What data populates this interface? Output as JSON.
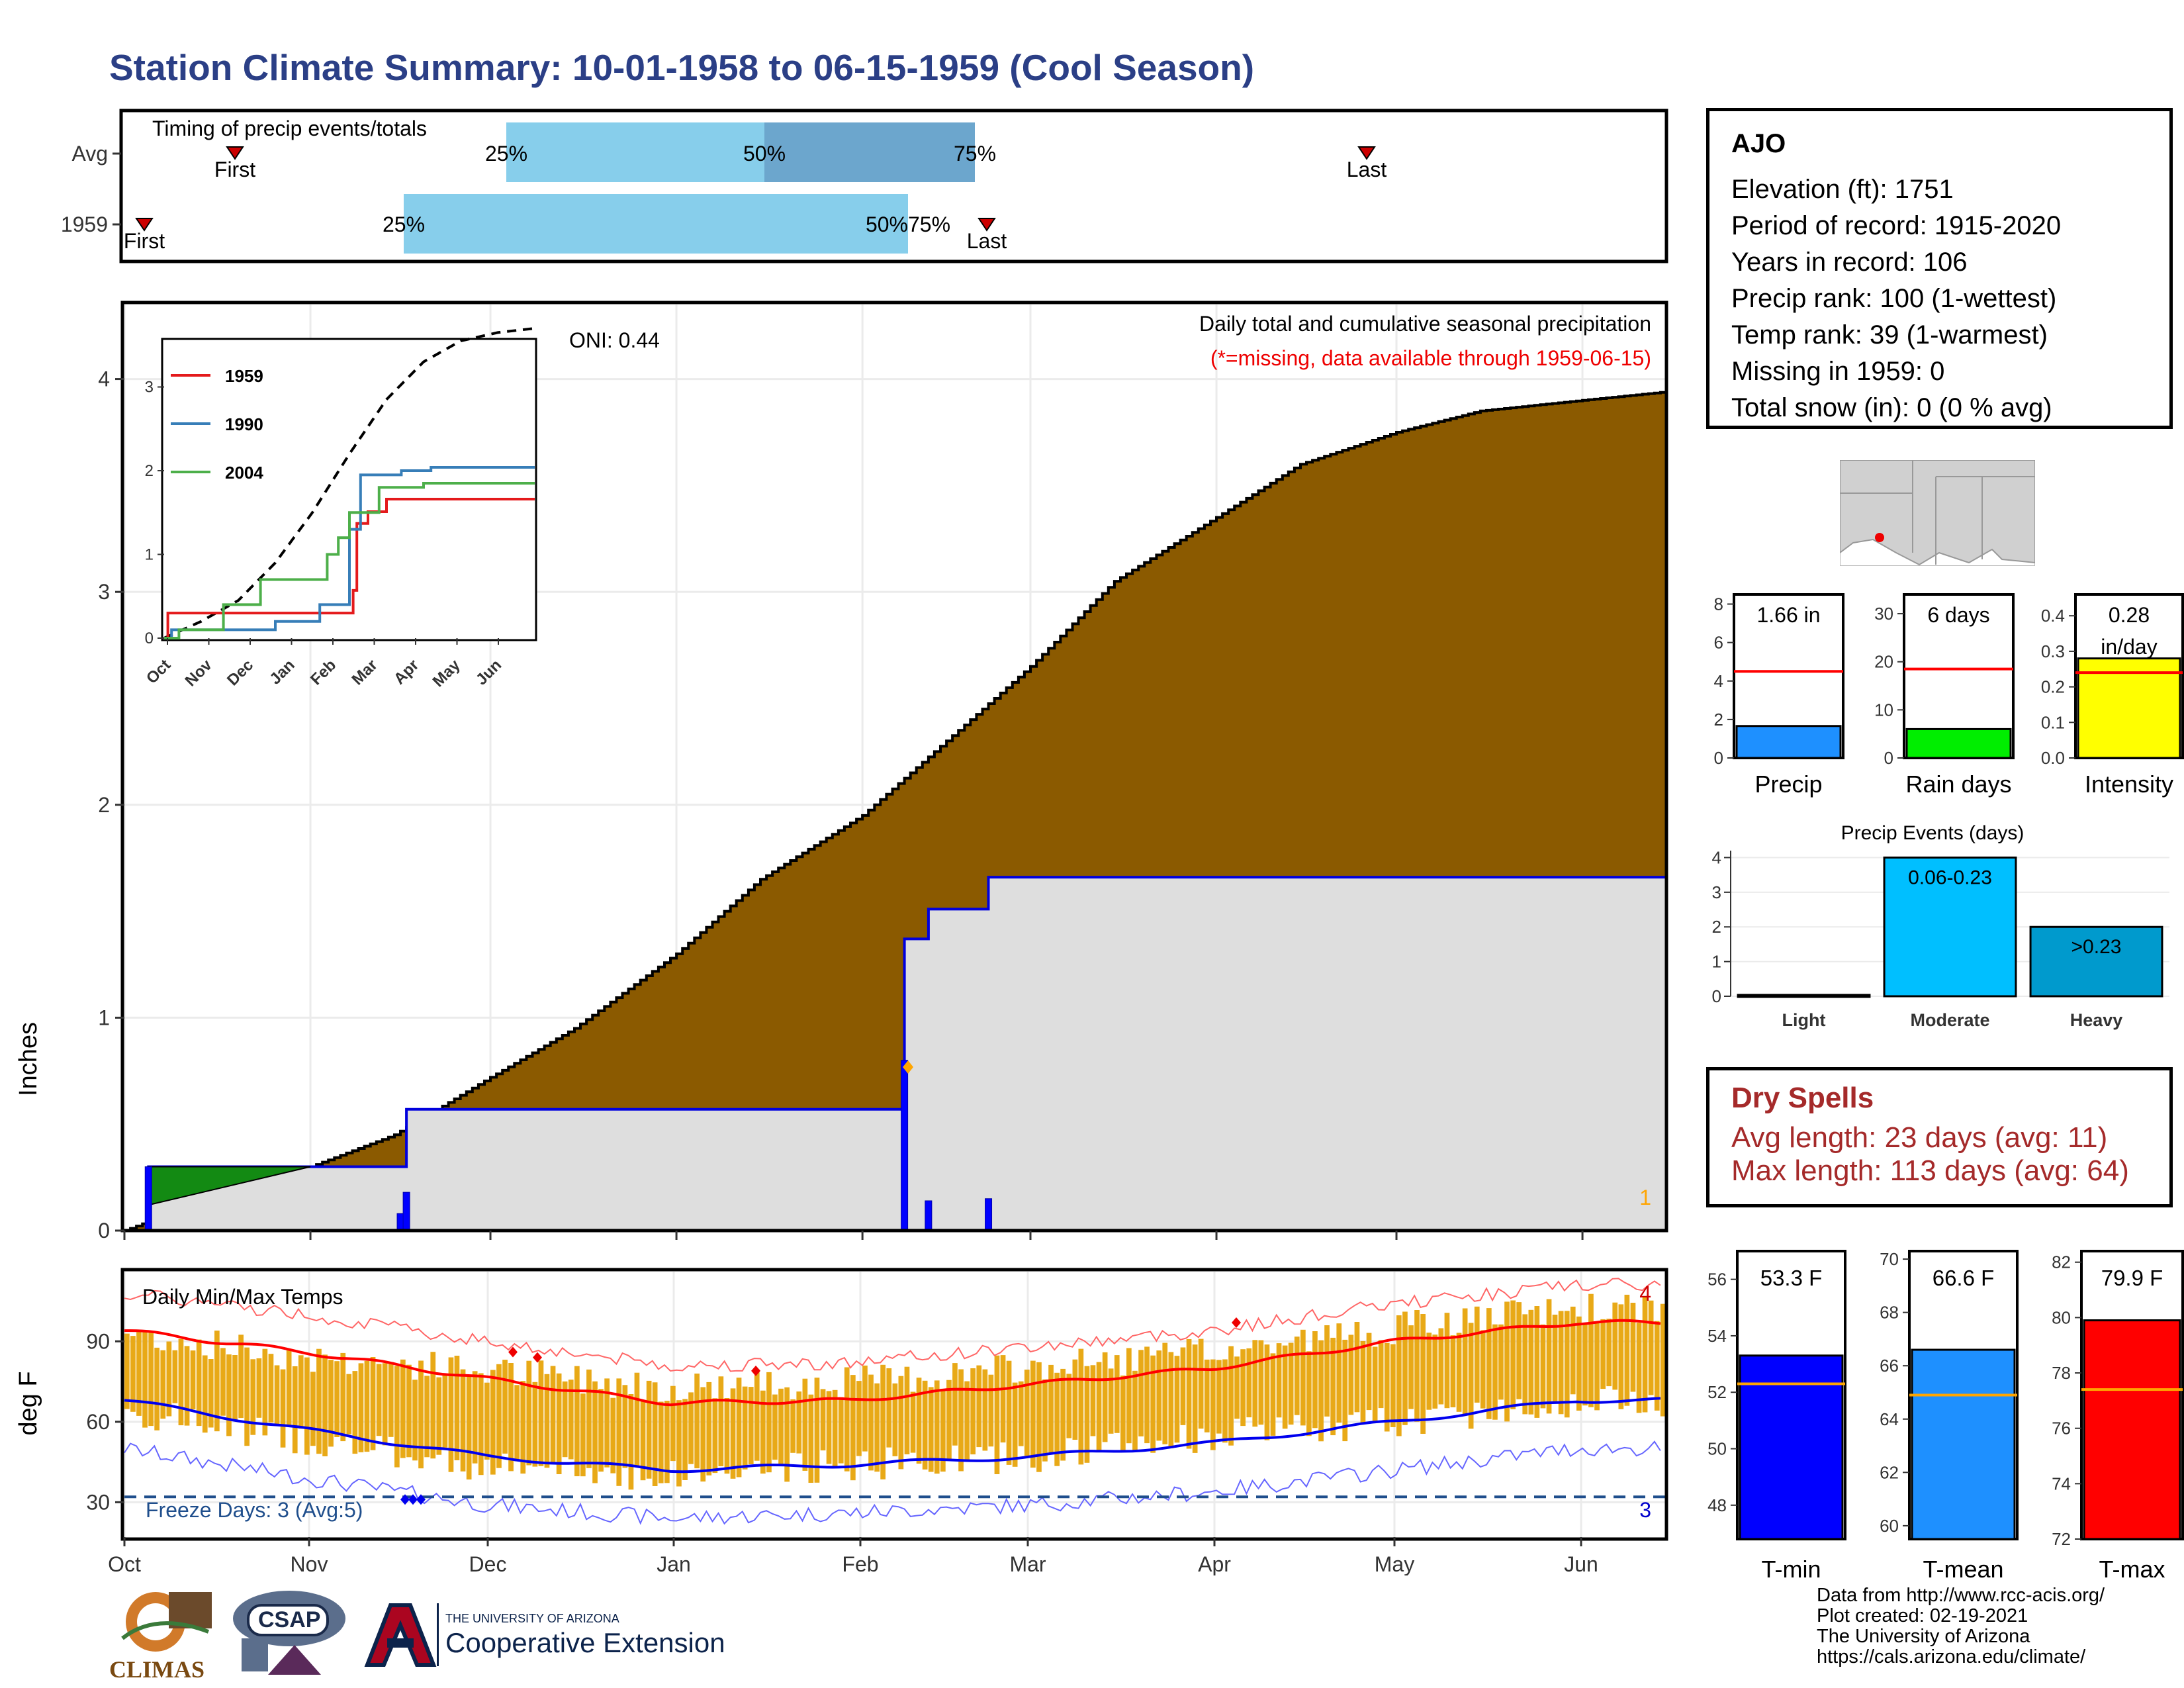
{
  "title": "Station Climate Summary: 10-01-1958 to 06-15-1959 (Cool Season)",
  "timing": {
    "title": "Timing of precip events/totals",
    "rows": [
      "Avg",
      "1959"
    ],
    "first_label": "First",
    "last_label": "Last",
    "q25": "25%",
    "q50": "50%",
    "q75": "75%",
    "q5075": "50%75%"
  },
  "precip": {
    "ylabel": "Inches",
    "yticks": [
      "0",
      "1",
      "2",
      "3",
      "4"
    ],
    "months": [
      "Oct",
      "Nov",
      "Dec",
      "Jan",
      "Feb",
      "Mar",
      "Apr",
      "May",
      "Jun"
    ],
    "oni": "ONI: 0.44",
    "subtitle": "Daily total and cumulative seasonal precipitation",
    "missing_note": "(*=missing, data available through 1959-06-15)",
    "missing_count": "1"
  },
  "inset": {
    "legend": [
      "1959",
      "1990",
      "2004"
    ],
    "colors": [
      "#E41A1C",
      "#377EB8",
      "#4DAF4A"
    ],
    "yticks": [
      "0",
      "1",
      "2",
      "3"
    ],
    "months": [
      "Oct",
      "Nov",
      "Dec",
      "Jan",
      "Feb",
      "Mar",
      "Apr",
      "May",
      "Jun"
    ]
  },
  "temps": {
    "ylabel": "deg F",
    "title": "Daily Min/Max Temps",
    "yticks": [
      "30",
      "60",
      "90"
    ],
    "freeze": "Freeze Days: 3 (Avg:5)",
    "freeze_count": "3",
    "hot_count": "4"
  },
  "station": {
    "name": "AJO",
    "lines": [
      "Elevation (ft): 1751",
      "Period of record: 1915-2020",
      "Years in record: 106",
      "Precip rank: 100 (1-wettest)",
      "Temp rank: 39 (1-warmest)",
      "Missing in 1959: 0",
      "Total snow (in): 0 (0 % avg)"
    ]
  },
  "mini_bars": [
    {
      "label": "Precip",
      "value_text": "1.66 in",
      "value": 1.66,
      "avg": 4.5,
      "ymax": 8.5,
      "ticks": [
        "0",
        "2",
        "4",
        "6",
        "8"
      ],
      "tickvals": [
        0,
        2,
        4,
        6,
        8
      ],
      "color": "#1E90FF"
    },
    {
      "label": "Rain days",
      "value_text": "6 days",
      "value": 6,
      "avg": 18.5,
      "ymax": 34,
      "ticks": [
        "0",
        "10",
        "20",
        "30"
      ],
      "tickvals": [
        0,
        10,
        20,
        30
      ],
      "color": "#00EE00"
    },
    {
      "label": "Intensity",
      "value_text": "0.28",
      "value_text2": "in/day",
      "value": 0.28,
      "avg": 0.24,
      "ymax": 0.46,
      "ticks": [
        "0.0",
        "0.1",
        "0.2",
        "0.3",
        "0.4"
      ],
      "tickvals": [
        0,
        0.1,
        0.2,
        0.3,
        0.4
      ],
      "color": "#FFFF00"
    }
  ],
  "precip_events": {
    "title": "Precip Events (days)",
    "categories": [
      "Light",
      "Moderate",
      "Heavy"
    ],
    "values": [
      0,
      4,
      2
    ],
    "bar_labels": [
      "",
      "0.06-0.23",
      ">0.23"
    ],
    "colors": [
      "#87CEEB",
      "#00BFFF",
      "#009ACD"
    ],
    "yticks": [
      "0",
      "1",
      "2",
      "3",
      "4"
    ]
  },
  "dry_spells": {
    "title": "Dry Spells",
    "avg": "Avg length: 23 days (avg: 11)",
    "max": "Max length: 113 days (avg: 64)"
  },
  "temp_bars": [
    {
      "label": "T-min",
      "value_text": "53.3 F",
      "value": 53.3,
      "avg": 52.3,
      "ymin": 46.8,
      "ymax": 57,
      "ticks": [
        "48",
        "50",
        "52",
        "54",
        "56"
      ],
      "tickvals": [
        48,
        50,
        52,
        54,
        56
      ],
      "color": "#0000FF"
    },
    {
      "label": "T-mean",
      "value_text": "66.6 F",
      "value": 66.6,
      "avg": 64.9,
      "ymin": 59.5,
      "ymax": 70.3,
      "ticks": [
        "60",
        "62",
        "64",
        "66",
        "68",
        "70"
      ],
      "tickvals": [
        60,
        62,
        64,
        66,
        68,
        70
      ],
      "color": "#1E90FF"
    },
    {
      "label": "T-max",
      "value_text": "79.9 F",
      "value": 79.9,
      "avg": 77.4,
      "ymin": 72,
      "ymax": 82.4,
      "ticks": [
        "72",
        "74",
        "76",
        "78",
        "80",
        "82"
      ],
      "tickvals": [
        72,
        74,
        76,
        78,
        80,
        82
      ],
      "color": "#FF0000"
    }
  ],
  "footer": {
    "lines": [
      "Data from http://www.rcc-acis.org/",
      "Plot created: 02-19-2021",
      "The University of Arizona",
      "https://cals.arizona.edu/climate/"
    ],
    "climas": "CLIMAS",
    "csap": "CSAP",
    "ua_small": "THE UNIVERSITY OF ARIZONA",
    "ua_big": "Cooperative Extension"
  },
  "chart_data": [
    {
      "type": "area",
      "title": "Daily total and cumulative seasonal precipitation",
      "ylabel": "Inches",
      "ylim": [
        0,
        4.35
      ],
      "x_range": [
        "1958-10-01",
        "1959-06-15"
      ],
      "series": [
        {
          "name": "Avg",
          "points": [
            [
              "1958-10-01",
              0.0
            ],
            [
              "1958-10-15",
              0.15
            ],
            [
              "1958-11-01",
              0.3
            ],
            [
              "1958-11-15",
              0.45
            ],
            [
              "1958-12-01",
              0.72
            ],
            [
              "1958-12-15",
              0.95
            ],
            [
              "1959-01-01",
              1.3
            ],
            [
              "1959-01-15",
              1.65
            ],
            [
              "1959-02-01",
              1.95
            ],
            [
              "1959-02-15",
              2.3
            ],
            [
              "1959-03-01",
              2.65
            ],
            [
              "1959-03-15",
              3.05
            ],
            [
              "1959-04-01",
              3.35
            ],
            [
              "1959-04-15",
              3.6
            ],
            [
              "1959-05-01",
              3.75
            ],
            [
              "1959-05-15",
              3.85
            ],
            [
              "1959-06-01",
              3.9
            ],
            [
              "1959-06-15",
              3.94
            ]
          ]
        },
        {
          "name": "1959",
          "points": [
            [
              "1958-10-01",
              0.0
            ],
            [
              "1958-10-05",
              0.3
            ],
            [
              "1958-11-16",
              0.3
            ],
            [
              "1958-11-17",
              0.57
            ],
            [
              "1959-02-08",
              0.57
            ],
            [
              "1959-02-08",
              1.37
            ],
            [
              "1959-02-12",
              1.37
            ],
            [
              "1959-02-12",
              1.51
            ],
            [
              "1959-02-22",
              1.51
            ],
            [
              "1959-02-22",
              1.66
            ],
            [
              "1959-06-15",
              1.66
            ]
          ]
        }
      ]
    },
    {
      "type": "line",
      "title": "",
      "ylim": [
        0,
        4.1
      ],
      "series": [
        {
          "name": "1959",
          "points": [
            [
              "Oct",
              0
            ],
            [
              "Oct-5",
              0.3
            ],
            [
              "Feb-8",
              0.57
            ],
            [
              "Feb-8",
              1.37
            ],
            [
              "Feb-22",
              1.66
            ],
            [
              "Jun",
              1.66
            ]
          ]
        },
        {
          "name": "1990",
          "points": [
            [
              "Oct",
              0
            ],
            [
              "Dec-15",
              0.15
            ],
            [
              "Jan-20",
              0.3
            ],
            [
              "Feb-10",
              1.2
            ],
            [
              "Feb-25",
              1.9
            ],
            [
              "Jun",
              2.0
            ]
          ]
        },
        {
          "name": "2004",
          "points": [
            [
              "Oct",
              0
            ],
            [
              "Nov",
              0.2
            ],
            [
              "Dec",
              0.5
            ],
            [
              "Jan",
              0.7
            ],
            [
              "Feb",
              1.1
            ],
            [
              "Mar",
              1.8
            ],
            [
              "Jun",
              1.85
            ]
          ]
        }
      ]
    },
    {
      "type": "bar",
      "title": "Daily Min/Max Temps",
      "ylabel": "deg F",
      "ylim": [
        17,
        116
      ],
      "x_range": [
        "1958-10-01",
        "1959-06-15"
      ],
      "series": [
        {
          "name": "Daily max (approx, monthly)",
          "values": [
            93,
            84,
            79,
            73,
            75,
            80,
            86,
            95,
            102
          ]
        },
        {
          "name": "Daily min (approx, monthly)",
          "values": [
            64,
            53,
            43,
            40,
            44,
            47,
            55,
            60,
            68
          ]
        },
        {
          "name": "Avg max",
          "values": [
            94,
            86,
            76,
            67,
            68,
            74,
            80,
            90,
            97
          ]
        },
        {
          "name": "Avg min",
          "values": [
            68,
            57,
            47,
            42,
            44,
            47,
            52,
            60,
            68
          ]
        }
      ],
      "categories": [
        "Oct",
        "Nov",
        "Dec",
        "Jan",
        "Feb",
        "Mar",
        "Apr",
        "May",
        "Jun"
      ]
    },
    {
      "type": "bar",
      "title": "Precip Events (days)",
      "categories": [
        "Light",
        "Moderate",
        "Heavy"
      ],
      "values": [
        0,
        4,
        2
      ],
      "ylim": [
        0,
        4.2
      ]
    }
  ]
}
